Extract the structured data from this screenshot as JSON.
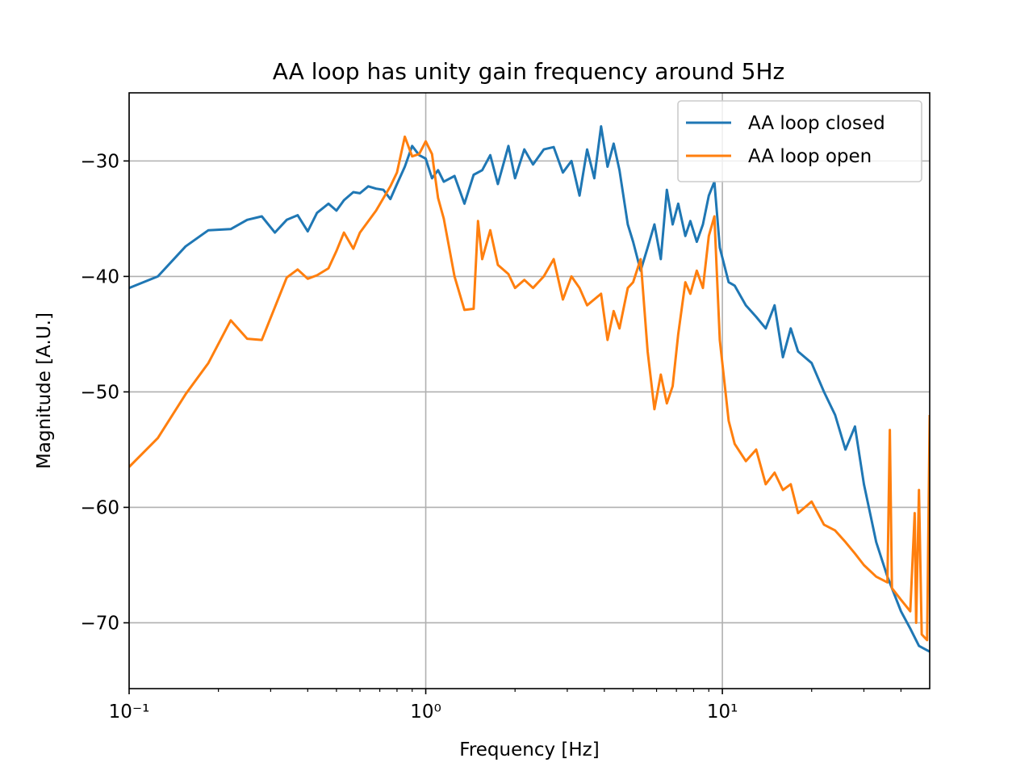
{
  "chart_data": {
    "type": "line",
    "title": "AA loop has unity gain frequency around 5Hz",
    "xlabel": "Frequency [Hz]",
    "ylabel": "Magnitude [A.U.]",
    "xscale": "log",
    "grid": true,
    "legend": "upper right",
    "xlim": [
      0.1,
      50
    ],
    "ylim": [
      -75.7,
      -24.1
    ],
    "xticks": [
      {
        "value": 0.1,
        "label": "10⁻¹"
      },
      {
        "value": 1,
        "label": "10⁰"
      },
      {
        "value": 10,
        "label": "10¹"
      }
    ],
    "xminorticks": [
      0.2,
      0.3,
      0.4,
      0.5,
      0.6,
      0.7,
      0.8,
      0.9,
      2,
      3,
      4,
      5,
      6,
      7,
      8,
      9,
      20,
      30,
      40
    ],
    "yticks": [
      {
        "value": -30,
        "label": "−30"
      },
      {
        "value": -40,
        "label": "−40"
      },
      {
        "value": -50,
        "label": "−50"
      },
      {
        "value": -60,
        "label": "−60"
      },
      {
        "value": -70,
        "label": "−70"
      }
    ],
    "series": [
      {
        "name": "AA loop closed",
        "color": "#1f77b4",
        "x": [
          0.1,
          0.125,
          0.155,
          0.185,
          0.22,
          0.25,
          0.28,
          0.31,
          0.34,
          0.37,
          0.4,
          0.43,
          0.47,
          0.5,
          0.53,
          0.57,
          0.6,
          0.64,
          0.68,
          0.72,
          0.76,
          0.8,
          0.85,
          0.9,
          0.95,
          1.0,
          1.05,
          1.1,
          1.15,
          1.25,
          1.35,
          1.45,
          1.55,
          1.65,
          1.75,
          1.9,
          2.0,
          2.15,
          2.3,
          2.5,
          2.7,
          2.9,
          3.1,
          3.3,
          3.5,
          3.7,
          3.9,
          4.1,
          4.3,
          4.5,
          4.8,
          5.0,
          5.3,
          5.6,
          5.9,
          6.2,
          6.5,
          6.8,
          7.1,
          7.5,
          7.8,
          8.2,
          8.6,
          9.0,
          9.4,
          9.8,
          10.5,
          11,
          12,
          13,
          14,
          15,
          16,
          17,
          18,
          20,
          22,
          24,
          26,
          28,
          30,
          33,
          36,
          40,
          43,
          46,
          50
        ],
        "values": [
          -41,
          -40,
          -37.4,
          -36,
          -35.9,
          -35.1,
          -34.8,
          -36.2,
          -35.1,
          -34.7,
          -36.1,
          -34.5,
          -33.7,
          -34.3,
          -33.4,
          -32.7,
          -32.8,
          -32.2,
          -32.4,
          -32.5,
          -33.3,
          -32.0,
          -30.5,
          -28.7,
          -29.5,
          -29.8,
          -31.5,
          -30.8,
          -31.8,
          -31.3,
          -33.7,
          -31.2,
          -30.8,
          -29.5,
          -32.0,
          -28.7,
          -31.5,
          -29.0,
          -30.3,
          -29.0,
          -28.8,
          -31.0,
          -30.0,
          -33.0,
          -29.0,
          -31.5,
          -27.0,
          -30.5,
          -28.5,
          -30.8,
          -35.5,
          -37,
          -39.5,
          -37.5,
          -35.5,
          -38.5,
          -32.5,
          -35.5,
          -33.7,
          -36.5,
          -35.2,
          -37.0,
          -35.5,
          -33,
          -31.8,
          -37.5,
          -40.5,
          -40.8,
          -42.5,
          -43.5,
          -44.5,
          -42.5,
          -47,
          -44.5,
          -46.5,
          -47.5,
          -50,
          -52,
          -55,
          -53,
          -58,
          -63,
          -66,
          -69,
          -70.5,
          -72,
          -72.5
        ]
      },
      {
        "name": "AA loop open",
        "color": "#ff7f0e",
        "x": [
          0.1,
          0.125,
          0.155,
          0.185,
          0.22,
          0.25,
          0.28,
          0.34,
          0.37,
          0.4,
          0.43,
          0.47,
          0.5,
          0.53,
          0.57,
          0.6,
          0.68,
          0.76,
          0.8,
          0.85,
          0.9,
          0.95,
          1.0,
          1.05,
          1.1,
          1.15,
          1.25,
          1.35,
          1.45,
          1.5,
          1.55,
          1.65,
          1.75,
          1.9,
          2.0,
          2.15,
          2.3,
          2.5,
          2.7,
          2.9,
          3.1,
          3.3,
          3.5,
          3.9,
          4.1,
          4.3,
          4.5,
          4.8,
          5.0,
          5.3,
          5.6,
          5.9,
          6.2,
          6.5,
          6.8,
          7.1,
          7.5,
          7.8,
          8.2,
          8.6,
          9.0,
          9.4,
          9.8,
          10.5,
          11,
          12,
          13,
          14,
          15,
          16,
          17,
          18,
          20,
          22,
          24,
          26,
          28,
          30,
          33,
          36,
          36.7,
          37.3,
          40,
          43,
          44.5,
          45,
          46,
          47,
          49,
          50
        ],
        "values": [
          -56.5,
          -54,
          -50.2,
          -47.5,
          -43.8,
          -45.4,
          -45.5,
          -40.1,
          -39.4,
          -40.2,
          -39.9,
          -39.3,
          -37.8,
          -36.2,
          -37.6,
          -36.2,
          -34.3,
          -32.2,
          -31.0,
          -27.9,
          -29.6,
          -29.4,
          -28.3,
          -29.4,
          -33.2,
          -35,
          -40.0,
          -42.9,
          -42.8,
          -35.2,
          -38.5,
          -36.0,
          -39.0,
          -39.8,
          -41.0,
          -40.3,
          -41.0,
          -40.0,
          -38.5,
          -42.0,
          -40.0,
          -41.0,
          -42.5,
          -41.5,
          -45.5,
          -43.0,
          -44.5,
          -41.0,
          -40.5,
          -38.5,
          -46.5,
          -51.5,
          -48.5,
          -51,
          -49.5,
          -45,
          -40.5,
          -41.5,
          -39.5,
          -41,
          -36.5,
          -34.8,
          -45.5,
          -52.5,
          -54.5,
          -56,
          -55,
          -58,
          -57,
          -58.5,
          -58,
          -60.5,
          -59.5,
          -61.5,
          -62,
          -63,
          -64,
          -65,
          -66,
          -66.5,
          -53.3,
          -67,
          -68,
          -69,
          -60.5,
          -70,
          -58.5,
          -71,
          -71.5,
          -52
        ]
      }
    ]
  }
}
